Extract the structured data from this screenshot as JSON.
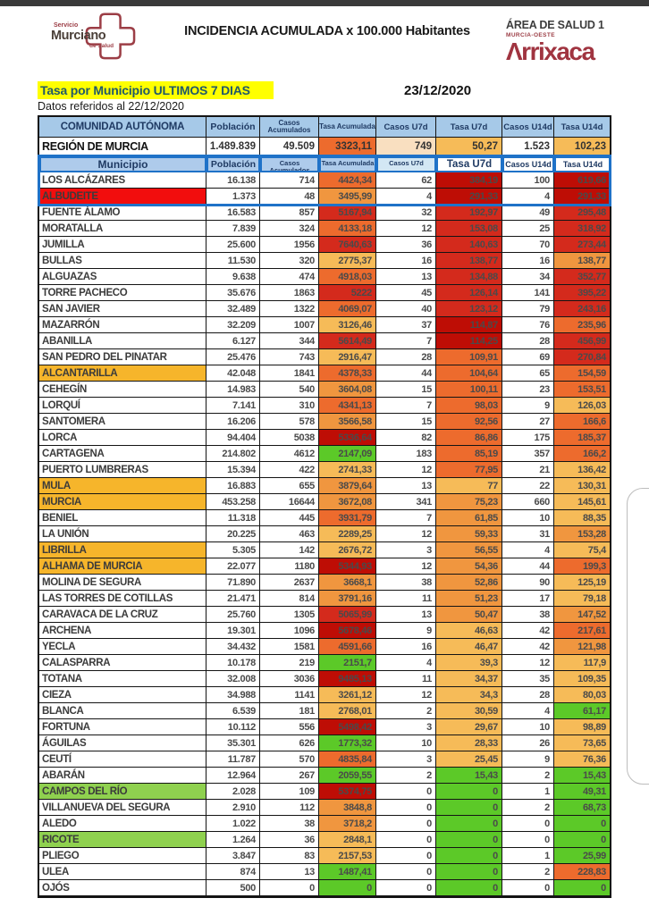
{
  "header": {
    "org_top": "Servicio",
    "org_name": "Murciano",
    "org_bottom": "de Salud",
    "title": "INCIDENCIA ACUMULADA x 100.000 Habitantes",
    "area_line1": "ÁREA DE SALUD 1",
    "area_line2": "MURCIA-OESTE",
    "hospital_logo": "Λrrixaca"
  },
  "subheader": {
    "highlight": "Tasa por Municipio ULTIMOS 7 DIAS",
    "data_note": "Datos referidos al 22/12/2020",
    "date": "23/12/2020"
  },
  "table": {
    "header1": [
      "COMUNIDAD AUTÓNOMA",
      "Población",
      "Casos Acumulados",
      "Tasa Acumulada",
      "Casos U7d",
      "Tasa U7d",
      "Casos U14d",
      "Tasa U14d"
    ],
    "region": {
      "name": "REGIÓN DE MURCIA",
      "pob": "1.489.839",
      "ca": "49.509",
      "ta": "3323,11",
      "c7": "749",
      "t7": "50,27",
      "c14": "1.523",
      "t14": "102,23"
    },
    "header2": [
      "Municipio",
      "Población",
      "Casos Acumulados",
      "Tasa Acumulada",
      "Casos U7d",
      "Tasa U7d",
      "Casos U14d",
      "Tasa U14d"
    ],
    "rows": [
      {
        "name": "LOS ALCÁZARES",
        "pob": "16.138",
        "ca": "714",
        "ta": "4424,34",
        "c7": "62",
        "t7": "384,19",
        "c14": "100",
        "t14": "619,66",
        "nb": "w",
        "tac": "ro",
        "t7c": "dr",
        "t14c": "dr"
      },
      {
        "name": "ALBUDEITE",
        "pob": "1.373",
        "ca": "48",
        "ta": "3495,99",
        "c7": "4",
        "t7": "291,33",
        "c14": "4",
        "t14": "291,33",
        "nb": "red",
        "tac": "o",
        "t7c": "dr",
        "t14c": "dr"
      },
      {
        "name": "FUENTE ÁLAMO",
        "pob": "16.583",
        "ca": "857",
        "ta": "5167,94",
        "c7": "32",
        "t7": "192,97",
        "c14": "49",
        "t14": "295,48",
        "nb": "w",
        "tac": "r",
        "t7c": "r",
        "t14c": "r"
      },
      {
        "name": "MORATALLA",
        "pob": "7.839",
        "ca": "324",
        "ta": "4133,18",
        "c7": "12",
        "t7": "153,08",
        "c14": "25",
        "t14": "318,92",
        "nb": "w",
        "tac": "ro",
        "t7c": "r",
        "t14c": "r"
      },
      {
        "name": "JUMILLA",
        "pob": "25.600",
        "ca": "1956",
        "ta": "7640,63",
        "c7": "36",
        "t7": "140,63",
        "c14": "70",
        "t14": "273,44",
        "nb": "w",
        "tac": "r",
        "t7c": "r",
        "t14c": "r"
      },
      {
        "name": "BULLAS",
        "pob": "11.530",
        "ca": "320",
        "ta": "2775,37",
        "c7": "16",
        "t7": "138,77",
        "c14": "16",
        "t14": "138,77",
        "nb": "w",
        "tac": "a",
        "t7c": "r",
        "t14c": "o"
      },
      {
        "name": "ALGUAZAS",
        "pob": "9.638",
        "ca": "474",
        "ta": "4918,03",
        "c7": "13",
        "t7": "134,88",
        "c14": "34",
        "t14": "352,77",
        "nb": "w",
        "tac": "ro",
        "t7c": "r",
        "t14c": "r"
      },
      {
        "name": "TORRE PACHECO",
        "pob": "35.676",
        "ca": "1863",
        "ta": "5222",
        "c7": "45",
        "t7": "126,14",
        "c14": "141",
        "t14": "395,22",
        "nb": "w",
        "tac": "r",
        "t7c": "r",
        "t14c": "r"
      },
      {
        "name": "SAN JAVIER",
        "pob": "32.489",
        "ca": "1322",
        "ta": "4069,07",
        "c7": "40",
        "t7": "123,12",
        "c14": "79",
        "t14": "243,16",
        "nb": "w",
        "tac": "ro",
        "t7c": "r",
        "t14c": "r"
      },
      {
        "name": "MAZARRÓN",
        "pob": "32.209",
        "ca": "1007",
        "ta": "3126,46",
        "c7": "37",
        "t7": "114,87",
        "c14": "76",
        "t14": "235,96",
        "nb": "w",
        "tac": "a",
        "t7c": "dr",
        "t14c": "ro"
      },
      {
        "name": "ABANILLA",
        "pob": "6.127",
        "ca": "344",
        "ta": "5614,49",
        "c7": "7",
        "t7": "114,25",
        "c14": "28",
        "t14": "456,99",
        "nb": "w",
        "tac": "r",
        "t7c": "dr",
        "t14c": "r"
      },
      {
        "name": "SAN PEDRO DEL PINATAR",
        "pob": "25.476",
        "ca": "743",
        "ta": "2916,47",
        "c7": "28",
        "t7": "109,91",
        "c14": "69",
        "t14": "270,84",
        "nb": "w",
        "tac": "a",
        "t7c": "ro",
        "t14c": "r"
      },
      {
        "name": "ALCANTARILLA",
        "pob": "42.048",
        "ca": "1841",
        "ta": "4378,33",
        "c7": "44",
        "t7": "104,64",
        "c14": "65",
        "t14": "154,59",
        "nb": "amber",
        "tac": "ro",
        "t7c": "ro",
        "t14c": "ro"
      },
      {
        "name": "CEHEGÍN",
        "pob": "14.983",
        "ca": "540",
        "ta": "3604,08",
        "c7": "15",
        "t7": "100,11",
        "c14": "23",
        "t14": "153,51",
        "nb": "w",
        "tac": "o",
        "t7c": "ro",
        "t14c": "ro"
      },
      {
        "name": "LORQUÍ",
        "pob": "7.141",
        "ca": "310",
        "ta": "4341,13",
        "c7": "7",
        "t7": "98,03",
        "c14": "9",
        "t14": "126,03",
        "nb": "w",
        "tac": "ro",
        "t7c": "ro",
        "t14c": "a"
      },
      {
        "name": "SANTOMERA",
        "pob": "16.206",
        "ca": "578",
        "ta": "3566,58",
        "c7": "15",
        "t7": "92,56",
        "c14": "27",
        "t14": "166,6",
        "nb": "w",
        "tac": "o",
        "t7c": "ro",
        "t14c": "ro"
      },
      {
        "name": "LORCA",
        "pob": "94.404",
        "ca": "5038",
        "ta": "5336,64",
        "c7": "82",
        "t7": "86,86",
        "c14": "175",
        "t14": "185,37",
        "nb": "w",
        "tac": "dr",
        "t7c": "ro",
        "t14c": "ro"
      },
      {
        "name": "CARTAGENA",
        "pob": "214.802",
        "ca": "4612",
        "ta": "2147,09",
        "c7": "183",
        "t7": "85,19",
        "c14": "357",
        "t14": "166,2",
        "nb": "w",
        "tac": "g",
        "t7c": "ro",
        "t14c": "ro"
      },
      {
        "name": "PUERTO LUMBRERAS",
        "pob": "15.394",
        "ca": "422",
        "ta": "2741,33",
        "c7": "12",
        "t7": "77,95",
        "c14": "21",
        "t14": "136,42",
        "nb": "w",
        "tac": "a",
        "t7c": "ro",
        "t14c": "a"
      },
      {
        "name": "MULA",
        "pob": "16.883",
        "ca": "655",
        "ta": "3879,64",
        "c7": "13",
        "t7": "77",
        "c14": "22",
        "t14": "130,31",
        "nb": "amber",
        "tac": "o",
        "t7c": "a",
        "t14c": "a"
      },
      {
        "name": "MURCIA",
        "pob": "453.258",
        "ca": "16644",
        "ta": "3672,08",
        "c7": "341",
        "t7": "75,23",
        "c14": "660",
        "t14": "145,61",
        "nb": "amber",
        "tac": "o",
        "t7c": "o",
        "t14c": "a"
      },
      {
        "name": "BENIEL",
        "pob": "11.318",
        "ca": "445",
        "ta": "3931,79",
        "c7": "7",
        "t7": "61,85",
        "c14": "10",
        "t14": "88,35",
        "nb": "w",
        "tac": "ro",
        "t7c": "o",
        "t14c": "a"
      },
      {
        "name": "LA UNIÓN",
        "pob": "20.225",
        "ca": "463",
        "ta": "2289,25",
        "c7": "12",
        "t7": "59,33",
        "c14": "31",
        "t14": "153,28",
        "nb": "w",
        "tac": "a",
        "t7c": "o",
        "t14c": "o"
      },
      {
        "name": "LIBRILLA",
        "pob": "5.305",
        "ca": "142",
        "ta": "2676,72",
        "c7": "3",
        "t7": "56,55",
        "c14": "4",
        "t14": "75,4",
        "nb": "amber",
        "tac": "a",
        "t7c": "o",
        "t14c": "a"
      },
      {
        "name": "ALHAMA DE MURCIA",
        "pob": "22.077",
        "ca": "1180",
        "ta": "5344,93",
        "c7": "12",
        "t7": "54,36",
        "c14": "44",
        "t14": "199,3",
        "nb": "amber",
        "tac": "dr",
        "t7c": "o",
        "t14c": "ro"
      },
      {
        "name": "MOLINA DE SEGURA",
        "pob": "71.890",
        "ca": "2637",
        "ta": "3668,1",
        "c7": "38",
        "t7": "52,86",
        "c14": "90",
        "t14": "125,19",
        "nb": "w",
        "tac": "o",
        "t7c": "o",
        "t14c": "a"
      },
      {
        "name": "LAS TORRES DE COTILLAS",
        "pob": "21.471",
        "ca": "814",
        "ta": "3791,16",
        "c7": "11",
        "t7": "51,23",
        "c14": "17",
        "t14": "79,18",
        "nb": "w",
        "tac": "o",
        "t7c": "o",
        "t14c": "a"
      },
      {
        "name": "CARAVACA DE LA CRUZ",
        "pob": "25.760",
        "ca": "1305",
        "ta": "5065,99",
        "c7": "13",
        "t7": "50,47",
        "c14": "38",
        "t14": "147,52",
        "nb": "w",
        "tac": "r",
        "t7c": "o",
        "t14c": "o"
      },
      {
        "name": "ARCHENA",
        "pob": "19.301",
        "ca": "1096",
        "ta": "5678,46",
        "c7": "9",
        "t7": "46,63",
        "c14": "42",
        "t14": "217,61",
        "nb": "w",
        "tac": "dr",
        "t7c": "a",
        "t14c": "ro"
      },
      {
        "name": "YECLA",
        "pob": "34.432",
        "ca": "1581",
        "ta": "4591,66",
        "c7": "16",
        "t7": "46,47",
        "c14": "42",
        "t14": "121,98",
        "nb": "w",
        "tac": "ro",
        "t7c": "a",
        "t14c": "o"
      },
      {
        "name": "CALASPARRA",
        "pob": "10.178",
        "ca": "219",
        "ta": "2151,7",
        "c7": "4",
        "t7": "39,3",
        "c14": "12",
        "t14": "117,9",
        "nb": "w",
        "tac": "g",
        "t7c": "a",
        "t14c": "a"
      },
      {
        "name": "TOTANA",
        "pob": "32.008",
        "ca": "3036",
        "ta": "9485,13",
        "c7": "11",
        "t7": "34,37",
        "c14": "35",
        "t14": "109,35",
        "nb": "w",
        "tac": "dr",
        "t7c": "a",
        "t14c": "a"
      },
      {
        "name": "CIEZA",
        "pob": "34.988",
        "ca": "1141",
        "ta": "3261,12",
        "c7": "12",
        "t7": "34,3",
        "c14": "28",
        "t14": "80,03",
        "nb": "w",
        "tac": "a",
        "t7c": "a",
        "t14c": "a"
      },
      {
        "name": "BLANCA",
        "pob": "6.539",
        "ca": "181",
        "ta": "2768,01",
        "c7": "2",
        "t7": "30,59",
        "c14": "4",
        "t14": "61,17",
        "nb": "w",
        "tac": "a",
        "t7c": "a",
        "t14c": "g"
      },
      {
        "name": "FORTUNA",
        "pob": "10.112",
        "ca": "556",
        "ta": "5498,42",
        "c7": "3",
        "t7": "29,67",
        "c14": "10",
        "t14": "98,89",
        "nb": "w",
        "tac": "dr",
        "t7c": "a",
        "t14c": "a"
      },
      {
        "name": "ÁGUILAS",
        "pob": "35.301",
        "ca": "626",
        "ta": "1773,32",
        "c7": "10",
        "t7": "28,33",
        "c14": "26",
        "t14": "73,65",
        "nb": "w",
        "tac": "g",
        "t7c": "a",
        "t14c": "a"
      },
      {
        "name": "CEUTÍ",
        "pob": "11.787",
        "ca": "570",
        "ta": "4835,84",
        "c7": "3",
        "t7": "25,45",
        "c14": "9",
        "t14": "76,36",
        "nb": "w",
        "tac": "ro",
        "t7c": "a",
        "t14c": "a"
      },
      {
        "name": "ABARÁN",
        "pob": "12.964",
        "ca": "267",
        "ta": "2059,55",
        "c7": "2",
        "t7": "15,43",
        "c14": "2",
        "t14": "15,43",
        "nb": "w",
        "tac": "g",
        "t7c": "g",
        "t14c": "g"
      },
      {
        "name": "CAMPOS DEL RÍO",
        "pob": "2.028",
        "ca": "109",
        "ta": "5374,75",
        "c7": "0",
        "t7": "0",
        "c14": "1",
        "t14": "49,31",
        "nb": "green",
        "tac": "dr",
        "t7c": "g",
        "t14c": "g"
      },
      {
        "name": "VILLANUEVA DEL SEGURA",
        "pob": "2.910",
        "ca": "112",
        "ta": "3848,8",
        "c7": "0",
        "t7": "0",
        "c14": "2",
        "t14": "68,73",
        "nb": "w",
        "tac": "o",
        "t7c": "g",
        "t14c": "g"
      },
      {
        "name": "ALEDO",
        "pob": "1.022",
        "ca": "38",
        "ta": "3718,2",
        "c7": "0",
        "t7": "0",
        "c14": "0",
        "t14": "0",
        "nb": "w",
        "tac": "o",
        "t7c": "g",
        "t14c": "g"
      },
      {
        "name": "RICOTE",
        "pob": "1.264",
        "ca": "36",
        "ta": "2848,1",
        "c7": "0",
        "t7": "0",
        "c14": "0",
        "t14": "0",
        "nb": "green",
        "tac": "a",
        "t7c": "g",
        "t14c": "g"
      },
      {
        "name": "PLIEGO",
        "pob": "3.847",
        "ca": "83",
        "ta": "2157,53",
        "c7": "0",
        "t7": "0",
        "c14": "1",
        "t14": "25,99",
        "nb": "w",
        "tac": "a",
        "t7c": "g",
        "t14c": "g"
      },
      {
        "name": "ULEA",
        "pob": "874",
        "ca": "13",
        "ta": "1487,41",
        "c7": "0",
        "t7": "0",
        "c14": "2",
        "t14": "228,83",
        "nb": "w",
        "tac": "g",
        "t7c": "g",
        "t14c": "ro"
      },
      {
        "name": "OJÓS",
        "pob": "500",
        "ca": "0",
        "ta": "0",
        "c7": "0",
        "t7": "0",
        "c14": "0",
        "t14": "0",
        "nb": "w",
        "tac": "g",
        "t7c": "g",
        "t14c": "g"
      }
    ]
  },
  "colors": {
    "accent_blue": "#1F72C8",
    "header_blue": "#A6C9E8",
    "highlight_yellow": "#FFFF00",
    "logo_red": "#9C3E46",
    "arrixaca_red": "#A03440",
    "region_c7_bg": "#F9DFC0",
    "scale": {
      "dr": "#BE0D05",
      "r": "#D42A1C",
      "ro": "#ED6B2D",
      "o": "#F0963F",
      "a": "#F6BB58",
      "g": "#5CC928"
    },
    "name_bg": {
      "red": "#F20D0D",
      "amber": "#F6B52B",
      "green": "#8FD14F"
    }
  }
}
